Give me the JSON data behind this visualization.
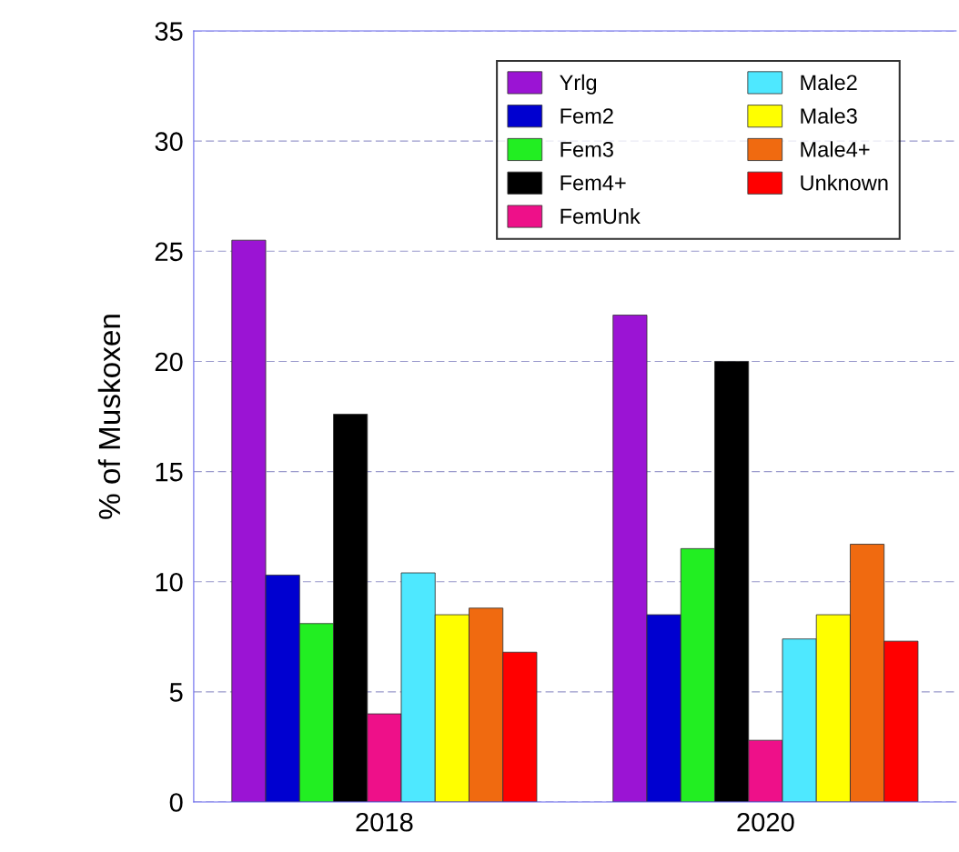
{
  "chart_data": {
    "type": "bar",
    "ylabel": "% of Muskoxen",
    "categories": [
      "2018",
      "2020"
    ],
    "series": [
      {
        "name": "Yrlg",
        "color": "#9b14d4",
        "values": [
          25.5,
          22.1
        ]
      },
      {
        "name": "Fem2",
        "color": "#0000d0",
        "values": [
          10.3,
          8.5
        ]
      },
      {
        "name": "Fem3",
        "color": "#22ee22",
        "values": [
          8.1,
          11.5
        ]
      },
      {
        "name": "Fem4+",
        "color": "#000000",
        "values": [
          17.6,
          20.0
        ]
      },
      {
        "name": "FemUnk",
        "color": "#ee1089",
        "values": [
          4.0,
          2.8
        ]
      },
      {
        "name": "Male2",
        "color": "#4ee8ff",
        "values": [
          10.4,
          7.4
        ]
      },
      {
        "name": "Male3",
        "color": "#ffff00",
        "values": [
          8.5,
          8.5
        ]
      },
      {
        "name": "Male4+",
        "color": "#f06a10",
        "values": [
          8.8,
          11.7
        ]
      },
      {
        "name": "Unknown",
        "color": "#ff0000",
        "values": [
          6.8,
          7.3
        ]
      }
    ],
    "ylim": [
      0,
      35
    ],
    "yticks": [
      0,
      5,
      10,
      15,
      20,
      25,
      30,
      35
    ],
    "grid": "y",
    "legend": "top right"
  }
}
